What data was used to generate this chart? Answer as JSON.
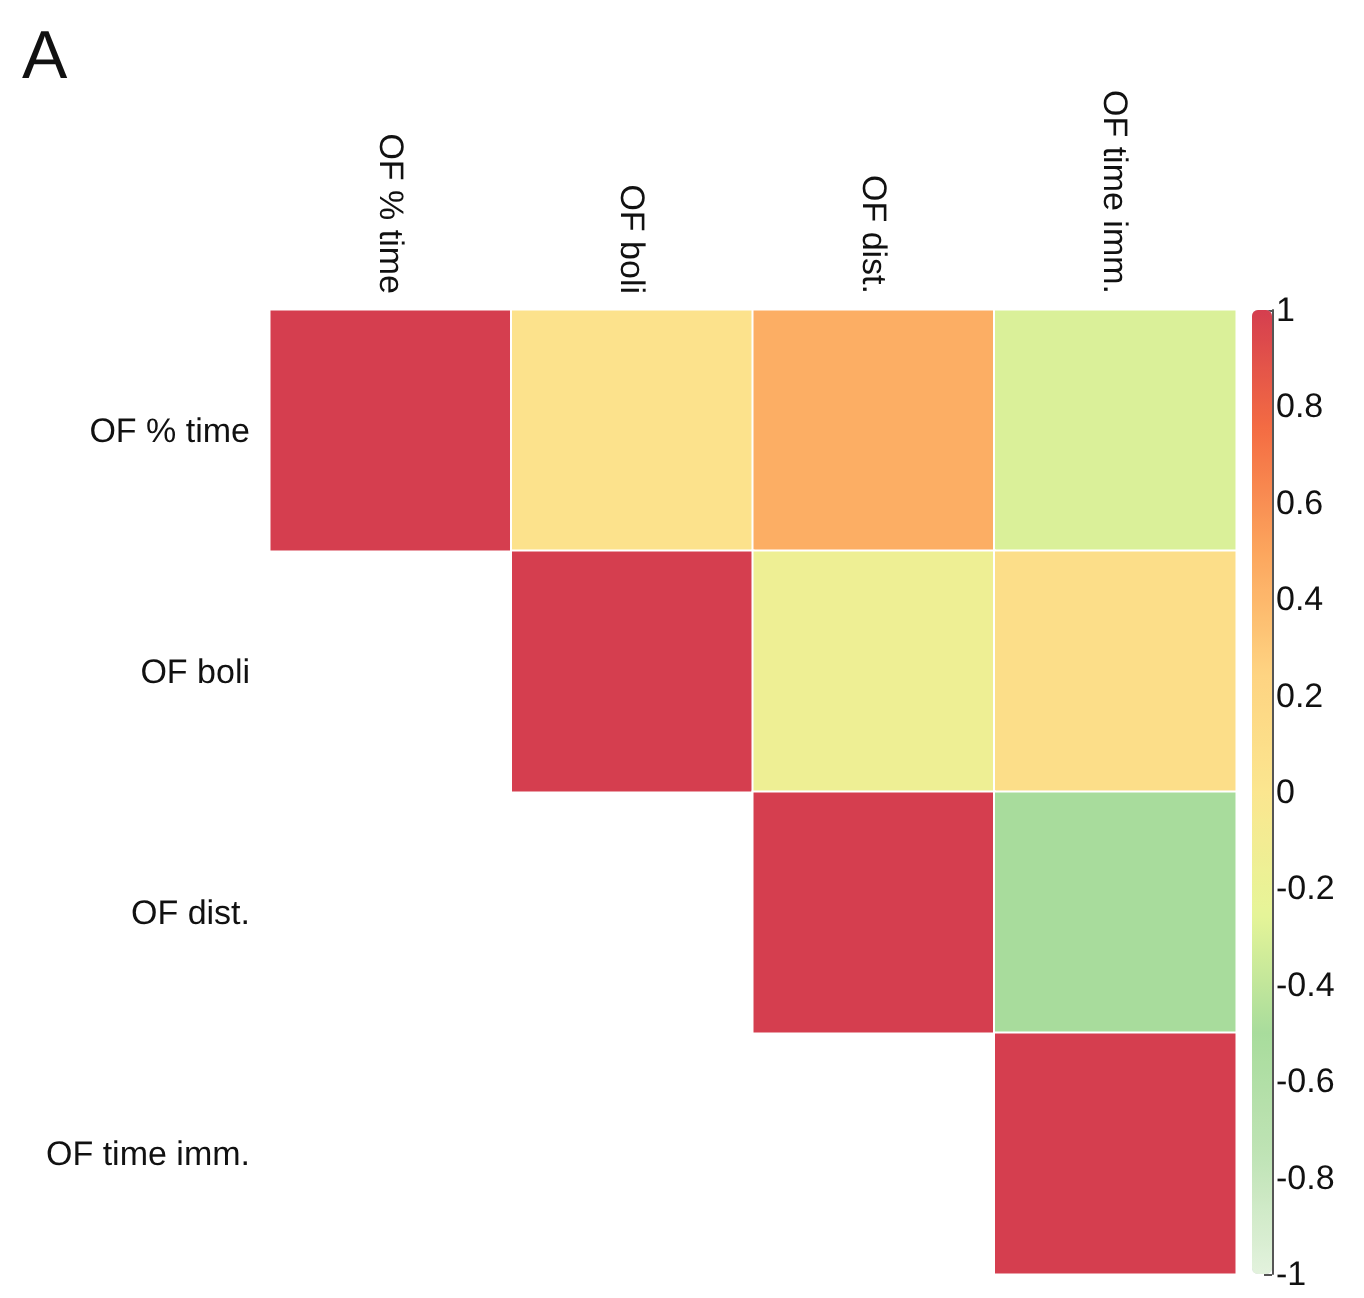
{
  "chart_data": {
    "type": "heatmap",
    "title": "A",
    "categories": [
      "OF % time",
      "OF boli",
      "OF dist.",
      "OF time imm."
    ],
    "y_categories": [
      "OF % time",
      "OF boli",
      "OF dist.",
      "OF time imm."
    ],
    "cells": [
      [
        1,
        0.05,
        0.45,
        -0.3
      ],
      [
        null,
        1,
        -0.15,
        0.1
      ],
      [
        null,
        null,
        1,
        -0.5
      ],
      [
        null,
        null,
        null,
        1
      ]
    ],
    "clim": [
      -1,
      1
    ],
    "cticks": [
      -1,
      -0.8,
      -0.6,
      -0.4,
      -0.2,
      0,
      0.2,
      0.4,
      0.6,
      0.8,
      1
    ]
  }
}
